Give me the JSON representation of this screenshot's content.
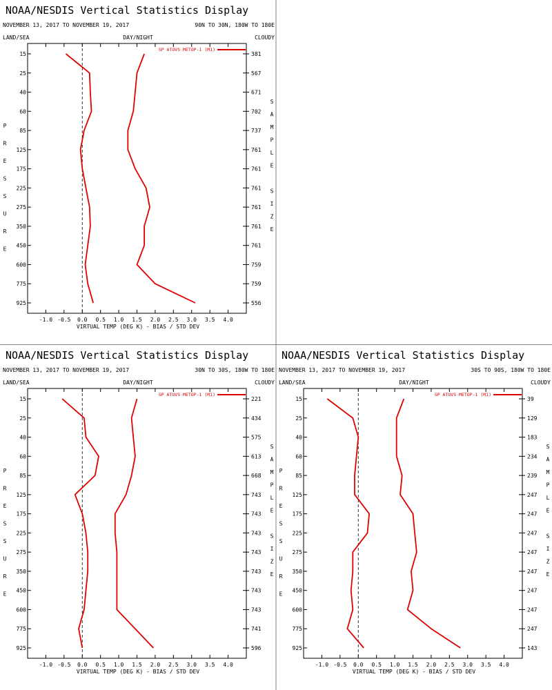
{
  "chart_data": [
    {
      "type": "line",
      "title": "NOAA/NESDIS Vertical Statistics Display",
      "date_range": "NOVEMBER 13, 2017 TO NOVEMBER 19, 2017",
      "region": "90N TO 30N, 180W TO 180E",
      "land_sea": "LAND/SEA",
      "day_night": "DAY/NIGHT",
      "cloudy": "CLOUDY",
      "xlabel": "VIRTUAL TEMP (DEG K) - BIAS / STD DEV",
      "ylabel": "PRESSURE",
      "y2label": "SAMPLE SIZE",
      "xlim": [
        -1.5,
        4.5
      ],
      "x_ticks": [
        -1.0,
        -0.5,
        0.0,
        0.5,
        1.0,
        1.5,
        2.0,
        2.5,
        3.0,
        3.5,
        4.0
      ],
      "pressure_levels": [
        "15",
        "25",
        "40",
        "60",
        "85",
        "125",
        "175",
        "225",
        "275",
        "350",
        "450",
        "600",
        "775",
        "925"
      ],
      "sample_sizes": [
        "381",
        "567",
        "671",
        "702",
        "737",
        "761",
        "761",
        "761",
        "761",
        "761",
        "761",
        "759",
        "759",
        "556"
      ],
      "legend": "SP ATOVS METOP-1 (M1)",
      "series": [
        {
          "role": "bias",
          "values": [
            -0.45,
            0.2,
            0.22,
            0.25,
            0.05,
            -0.05,
            0.0,
            0.1,
            0.2,
            0.22,
            0.15,
            0.08,
            0.15,
            0.3
          ]
        },
        {
          "role": "std_dev",
          "values": [
            1.7,
            1.5,
            1.45,
            1.4,
            1.25,
            1.25,
            1.45,
            1.75,
            1.85,
            1.7,
            1.7,
            1.5,
            2.0,
            3.1
          ]
        }
      ]
    },
    {
      "type": "line",
      "title": "NOAA/NESDIS Vertical Statistics Display",
      "date_range": "NOVEMBER 13, 2017 TO NOVEMBER 19, 2017",
      "region": "30N TO 30S, 180W TO 180E",
      "land_sea": "LAND/SEA",
      "day_night": "DAY/NIGHT",
      "cloudy": "CLOUDY",
      "xlabel": "VIRTUAL TEMP (DEG K) - BIAS / STD DEV",
      "ylabel": "PRESSURE",
      "y2label": "SAMPLE SIZE",
      "xlim": [
        -1.5,
        4.5
      ],
      "x_ticks": [
        -1.0,
        -0.5,
        0.0,
        0.5,
        1.0,
        1.5,
        2.0,
        2.5,
        3.0,
        3.5,
        4.0
      ],
      "pressure_levels": [
        "15",
        "25",
        "40",
        "60",
        "85",
        "125",
        "175",
        "225",
        "275",
        "350",
        "450",
        "600",
        "775",
        "925"
      ],
      "sample_sizes": [
        "221",
        "434",
        "575",
        "613",
        "668",
        "743",
        "743",
        "743",
        "743",
        "743",
        "743",
        "743",
        "741",
        "596"
      ],
      "legend": "SP ATOVS METOP-1 (M1)",
      "series": [
        {
          "role": "bias",
          "values": [
            -0.55,
            0.05,
            0.1,
            0.45,
            0.35,
            -0.2,
            0.0,
            0.1,
            0.15,
            0.15,
            0.1,
            0.05,
            -0.1,
            0.0
          ]
        },
        {
          "role": "std_dev",
          "values": [
            1.5,
            1.35,
            1.4,
            1.45,
            1.35,
            1.2,
            0.9,
            0.9,
            0.95,
            0.95,
            0.95,
            0.95,
            1.45,
            1.95
          ]
        }
      ]
    },
    {
      "type": "line",
      "title": "NOAA/NESDIS Vertical Statistics Display",
      "date_range": "NOVEMBER 13, 2017 TO NOVEMBER 19, 2017",
      "region": "30S TO 90S, 180W TO 180E",
      "land_sea": "LAND/SEA",
      "day_night": "DAY/NIGHT",
      "cloudy": "CLOUDY",
      "xlabel": "VIRTUAL TEMP (DEG K) - BIAS / STD DEV",
      "ylabel": "PRESSURE",
      "y2label": "SAMPLE SIZE",
      "xlim": [
        -1.5,
        4.5
      ],
      "x_ticks": [
        -1.0,
        -0.5,
        0.0,
        0.5,
        1.0,
        1.5,
        2.0,
        2.5,
        3.0,
        3.5,
        4.0
      ],
      "pressure_levels": [
        "15",
        "25",
        "40",
        "60",
        "85",
        "125",
        "175",
        "225",
        "275",
        "350",
        "450",
        "600",
        "775",
        "925"
      ],
      "sample_sizes": [
        "39",
        "129",
        "183",
        "234",
        "239",
        "247",
        "247",
        "247",
        "247",
        "247",
        "247",
        "247",
        "247",
        "143"
      ],
      "legend": "SP ATOVS METOP-1 (M1)",
      "series": [
        {
          "role": "bias",
          "values": [
            -0.85,
            -0.15,
            0.0,
            -0.05,
            -0.1,
            -0.1,
            0.3,
            0.25,
            -0.15,
            -0.15,
            -0.2,
            -0.15,
            -0.3,
            0.15
          ]
        },
        {
          "role": "std_dev",
          "values": [
            1.25,
            1.05,
            1.05,
            1.05,
            1.2,
            1.15,
            1.5,
            1.55,
            1.6,
            1.45,
            1.5,
            1.35,
            2.0,
            2.8
          ]
        }
      ]
    }
  ],
  "colors": {
    "series": "#e00000",
    "axis": "#000000",
    "divider": "#808080",
    "zero_line": "#000000"
  }
}
